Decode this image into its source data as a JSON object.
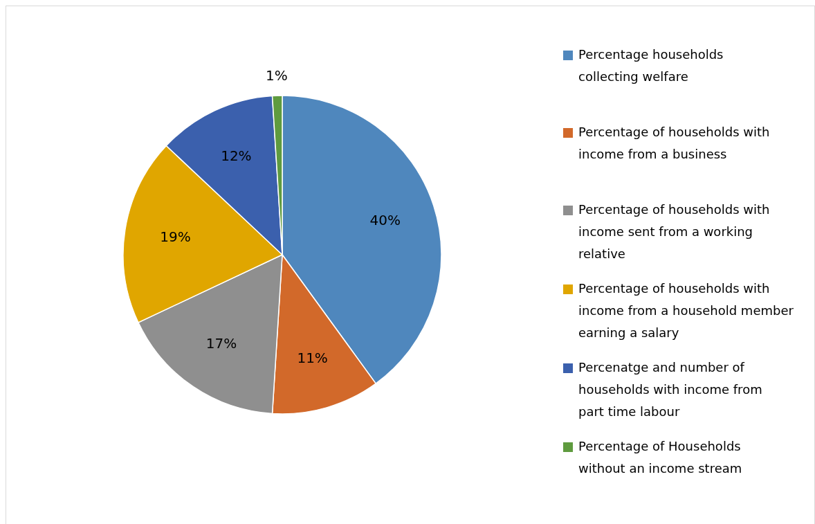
{
  "chart_data": {
    "type": "pie",
    "categories": [
      "Percentage households collecting welfare",
      "Percentage of households with income from a business",
      "Percentage of households with income sent from a working relative",
      "Percentage of households with income from a household member earning a salary",
      "Percenatge and number of households with income from part time labour",
      "Percentage of Households without an income stream"
    ],
    "values": [
      40,
      11,
      17,
      19,
      12,
      1
    ],
    "colors": [
      "#4f87bd",
      "#d2692a",
      "#8f8f8f",
      "#e0a600",
      "#3b60ad",
      "#5f9b3f"
    ],
    "value_labels": [
      "40%",
      "11%",
      "17%",
      "19%",
      "12%",
      "1%"
    ],
    "legend": "right"
  }
}
